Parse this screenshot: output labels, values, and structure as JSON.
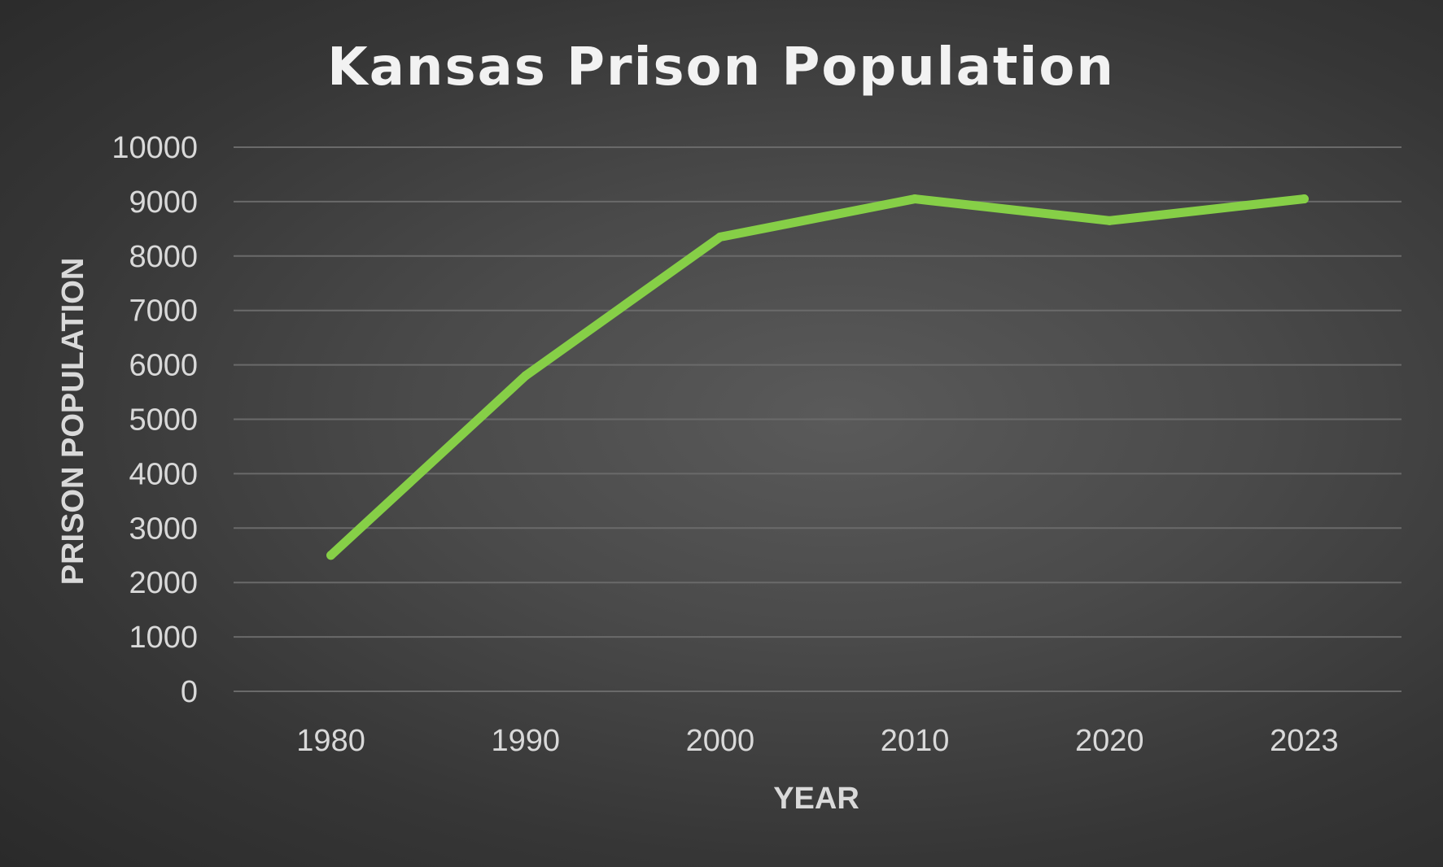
{
  "chart_data": {
    "type": "line",
    "title": "Kansas Prison Population",
    "xlabel": "YEAR",
    "ylabel": "PRISON POPULATION",
    "categories": [
      "1980",
      "1990",
      "2000",
      "2010",
      "2020",
      "2023"
    ],
    "y_ticks": [
      "0",
      "1000",
      "2000",
      "3000",
      "4000",
      "5000",
      "6000",
      "7000",
      "8000",
      "9000",
      "10000"
    ],
    "ylim": [
      0,
      10000
    ],
    "grid": true,
    "legend": "none",
    "series": [
      {
        "values": [
          2500,
          5800,
          8350,
          9050,
          8650,
          9050
        ],
        "color": "#86cf47"
      }
    ]
  }
}
